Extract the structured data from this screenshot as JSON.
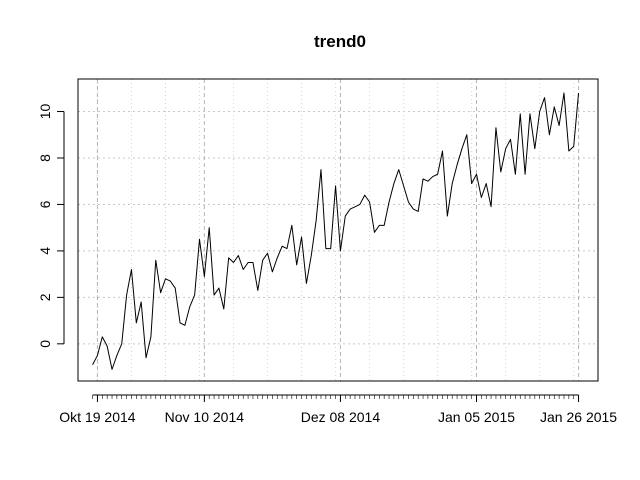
{
  "chart_data": {
    "type": "line",
    "title": "trend0",
    "xlabel": "",
    "ylabel": "",
    "x_start": "2014-10-18",
    "x_end": "2015-01-26",
    "xlim": [
      "2014-10-15",
      "2015-01-30"
    ],
    "ylim": [
      -1.6,
      11.4
    ],
    "y_ticks": [
      0,
      2,
      4,
      6,
      8,
      10
    ],
    "x_ticks": [
      {
        "date": "2014-10-19",
        "label": "Okt 19 2014"
      },
      {
        "date": "2014-11-10",
        "label": "Nov 10 2014"
      },
      {
        "date": "2014-12-08",
        "label": "Dez 08 2014"
      },
      {
        "date": "2015-01-05",
        "label": "Jan 05 2015"
      },
      {
        "date": "2015-01-26",
        "label": "Jan 26 2015"
      }
    ],
    "grid": true,
    "line_color": "#000000",
    "values": [
      -0.9,
      -0.5,
      0.3,
      -0.1,
      -1.1,
      -0.5,
      0.0,
      2.1,
      3.2,
      0.9,
      1.8,
      -0.6,
      0.3,
      3.6,
      2.2,
      2.8,
      2.7,
      2.4,
      0.9,
      0.8,
      1.6,
      2.1,
      4.5,
      2.9,
      5.0,
      2.1,
      2.4,
      1.5,
      3.7,
      3.5,
      3.8,
      3.2,
      3.5,
      3.5,
      2.3,
      3.6,
      3.9,
      3.1,
      3.7,
      4.2,
      4.1,
      5.1,
      3.4,
      4.6,
      2.6,
      3.8,
      5.3,
      7.5,
      4.1,
      4.1,
      6.8,
      4.0,
      5.5,
      5.8,
      5.9,
      6.0,
      6.4,
      6.1,
      4.8,
      5.1,
      5.1,
      6.1,
      6.9,
      7.5,
      6.8,
      6.1,
      5.8,
      5.7,
      7.1,
      7.0,
      7.2,
      7.3,
      8.3,
      5.5,
      6.9,
      7.7,
      8.4,
      9.0,
      6.9,
      7.3,
      6.3,
      6.9,
      5.9,
      9.3,
      7.4,
      8.4,
      8.8,
      7.3,
      9.9,
      7.3,
      9.9,
      8.4,
      10.0,
      10.6,
      9.0,
      10.2,
      9.4,
      10.8,
      8.3,
      8.5,
      10.8
    ]
  }
}
